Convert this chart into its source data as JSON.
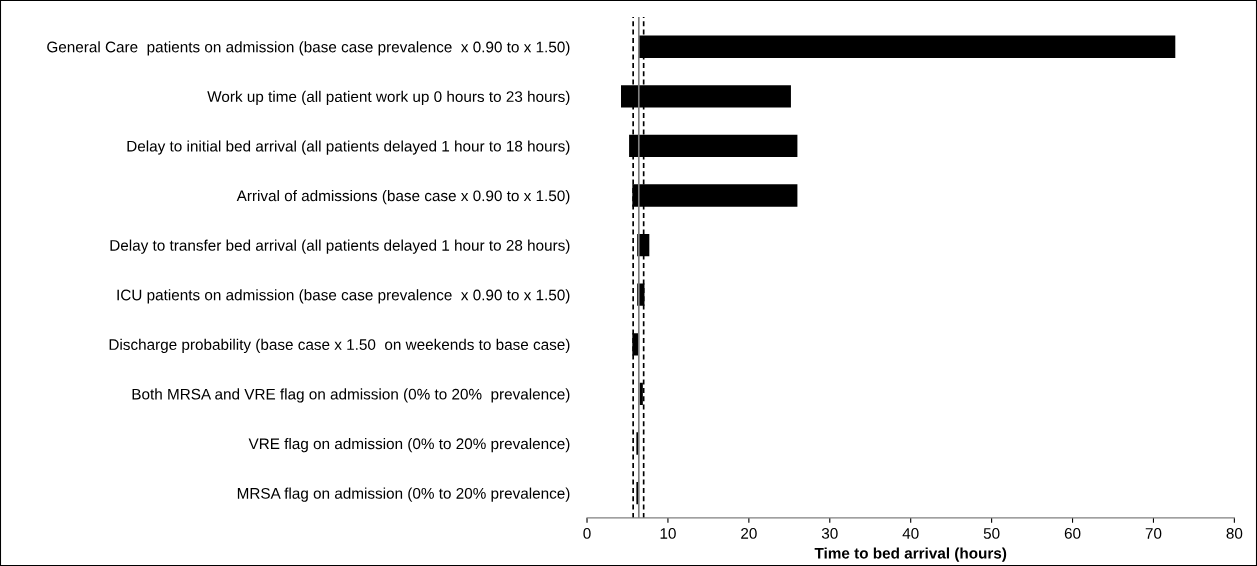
{
  "chart_data": {
    "type": "bar",
    "orientation": "horizontal",
    "xlabel": "Time to bed arrival (hours)",
    "categories": [
      "General Care  patients on admission (base case prevalence  x 0.90 to x 1.50)",
      "Work up time (all patient work up 0 hours to 23 hours)",
      "Delay to initial bed arrival (all patients delayed 1 hour to 18 hours)",
      "Arrival of admissions (base case x 0.90 to x 1.50)",
      "Delay to transfer bed arrival (all patients delayed 1 hour to 28 hours)",
      "ICU patients on admission (base case prevalence  x 0.90 to x 1.50)",
      "Discharge probability (base case x 1.50  on weekends to base case)",
      "Both MRSA and VRE flag on admission (0% to 20%  prevalence)",
      "VRE flag on admission (0% to 20% prevalence)",
      "MRSA flag on admission (0% to 20% prevalence)"
    ],
    "base": [
      6.4,
      4.2,
      5.2,
      5.6,
      6.2,
      6.2,
      5.6,
      6.5,
      6.1,
      6.1
    ],
    "values": [
      66.3,
      21.0,
      20.8,
      20.4,
      1.5,
      0.9,
      0.7,
      0.4,
      0.3,
      0.3
    ],
    "color": "#000000",
    "xlim": [
      0,
      80
    ],
    "xticks": [
      0,
      10,
      20,
      30,
      40,
      50,
      60,
      70,
      80
    ],
    "ref_lines": [
      {
        "axis": "x",
        "value": 6.4,
        "color": "#808080",
        "line_style": "solid"
      },
      {
        "axis": "x",
        "value": 5.7,
        "color": "#000000",
        "line_style": "dashed"
      },
      {
        "axis": "x",
        "value": 7.0,
        "color": "#000000",
        "line_style": "dashed"
      }
    ],
    "grid": false,
    "legend": false
  }
}
